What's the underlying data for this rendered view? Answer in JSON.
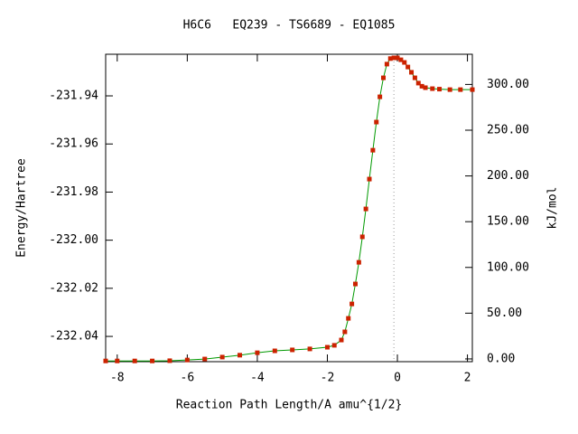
{
  "chart_data": {
    "type": "line",
    "title": "H6C6   EQ239 - TS6689 - EQ1085",
    "x_label": "Reaction Path Length/A amu^{1/2}",
    "y_label": "Energy/Hartree",
    "y2_label": "kJ/mol",
    "x": [
      -8.33,
      -8.0,
      -7.5,
      -7.0,
      -6.5,
      -6.0,
      -5.5,
      -5.0,
      -4.5,
      -4.0,
      -3.5,
      -3.0,
      -2.5,
      -2.0,
      -1.8,
      -1.6,
      -1.5,
      -1.4,
      -1.3,
      -1.2,
      -1.1,
      -1.0,
      -0.9,
      -0.8,
      -0.7,
      -0.6,
      -0.5,
      -0.4,
      -0.3,
      -0.2,
      -0.1,
      0.0,
      0.1,
      0.2,
      0.3,
      0.4,
      0.5,
      0.6,
      0.7,
      0.8,
      1.0,
      1.2,
      1.5,
      1.8,
      2.14
    ],
    "series": [
      {
        "name": "Energy",
        "color": "#009900",
        "marker_color": "#cc2200",
        "values": [
          -232.0502,
          -232.0502,
          -232.0502,
          -232.0502,
          -232.0501,
          -232.0498,
          -232.0494,
          -232.0486,
          -232.0478,
          -232.0468,
          -232.046,
          -232.0456,
          -232.0452,
          -232.0445,
          -232.0437,
          -232.0415,
          -232.0381,
          -232.0325,
          -232.0265,
          -232.0182,
          -232.0092,
          -231.9986,
          -231.987,
          -231.9746,
          -231.9626,
          -231.9509,
          -231.9404,
          -231.9325,
          -231.9268,
          -231.9245,
          -231.9242,
          -231.9242,
          -231.925,
          -231.9261,
          -231.928,
          -231.9302,
          -231.9325,
          -231.9347,
          -231.936,
          -231.9366,
          -231.937,
          -231.9372,
          -231.9374,
          -231.9374,
          -231.9374
        ]
      }
    ],
    "xlim": [
      -8.33,
      2.14
    ],
    "xticks": [
      -8,
      -6,
      -4,
      -2,
      0,
      2
    ],
    "ylim": [
      -232.0505,
      -231.9227
    ],
    "yticks": [
      -232.04,
      -232.02,
      {
        "value": -232.0,
        "label": "-232.00"
      },
      -231.98,
      -231.96,
      -231.94
    ],
    "y2lim": [
      -3,
      333
    ],
    "y2ticks": [
      {
        "value": 0,
        "label": "0.00"
      },
      {
        "value": 50,
        "label": "50.00"
      },
      {
        "value": 100,
        "label": "100.00"
      },
      {
        "value": 150,
        "label": "150.00"
      },
      {
        "value": 200,
        "label": "200.00"
      },
      {
        "value": 250,
        "label": "250.00"
      },
      {
        "value": 300,
        "label": "300.00"
      }
    ]
  }
}
